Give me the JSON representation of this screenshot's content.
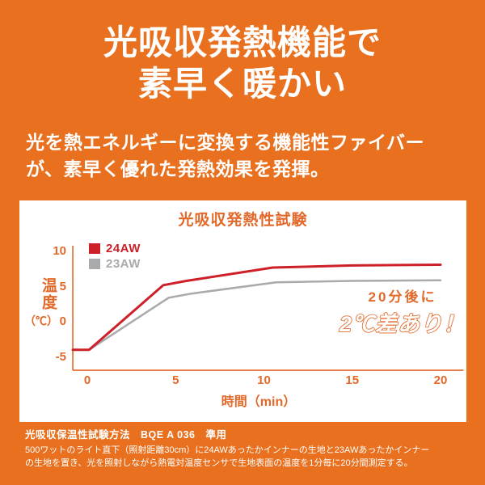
{
  "colors": {
    "background": "#e8701e",
    "accent": "#e2692a",
    "red": "#cd2028",
    "gray": "#a8aaac",
    "white": "#ffffff"
  },
  "hero": {
    "title_line1": "光吸収発熱機能で",
    "title_line2": "素早く暖かい",
    "subtitle_line1": "光を熱エネルギーに変換する機能性ファイバー",
    "subtitle_line2": "が、素早く優れた発熱効果を発揮。"
  },
  "chart_data": {
    "type": "line",
    "title": "光吸収発熱性試験",
    "xlabel": "時間（min）",
    "ylabel": "温度",
    "ylabel_unit": "（℃）",
    "x_ticks": [
      0,
      5,
      10,
      15,
      20
    ],
    "y_ticks": [
      10,
      5,
      0,
      -5
    ],
    "xlim": [
      -0.82,
      21.3
    ],
    "ylim": [
      -6.9,
      10.8
    ],
    "grid": false,
    "legend_position": "top-left-inside",
    "series": [
      {
        "name": "24AW",
        "color": "#cd2028",
        "points": [
          [
            -0.82,
            -4
          ],
          [
            0.1,
            -4
          ],
          [
            4.3,
            5.2
          ],
          [
            5.6,
            5.8
          ],
          [
            10.5,
            7.7
          ],
          [
            15,
            8.0
          ],
          [
            20,
            8.1
          ]
        ]
      },
      {
        "name": "23AW",
        "color": "#a8aaac",
        "points": [
          [
            -0.82,
            -4
          ],
          [
            0.1,
            -4
          ],
          [
            4.6,
            3.4
          ],
          [
            5.9,
            4.0
          ],
          [
            10.7,
            5.6
          ],
          [
            15,
            5.8
          ],
          [
            20,
            5.9
          ]
        ]
      }
    ],
    "annotation": {
      "line1": "20分後に",
      "line2": "2℃差あり！"
    }
  },
  "footer": {
    "line1": "光吸収保温性試験方法　BQE A 036　準用",
    "line2": "500ワットのライト直下（照射距離30cm）に24AWあったかインナーの生地と23AWあったかインナー",
    "line3": "の生地を置き、光を照射しながら熱電対温度センサで生地表面の温度を1分毎に20分間測定する。"
  }
}
